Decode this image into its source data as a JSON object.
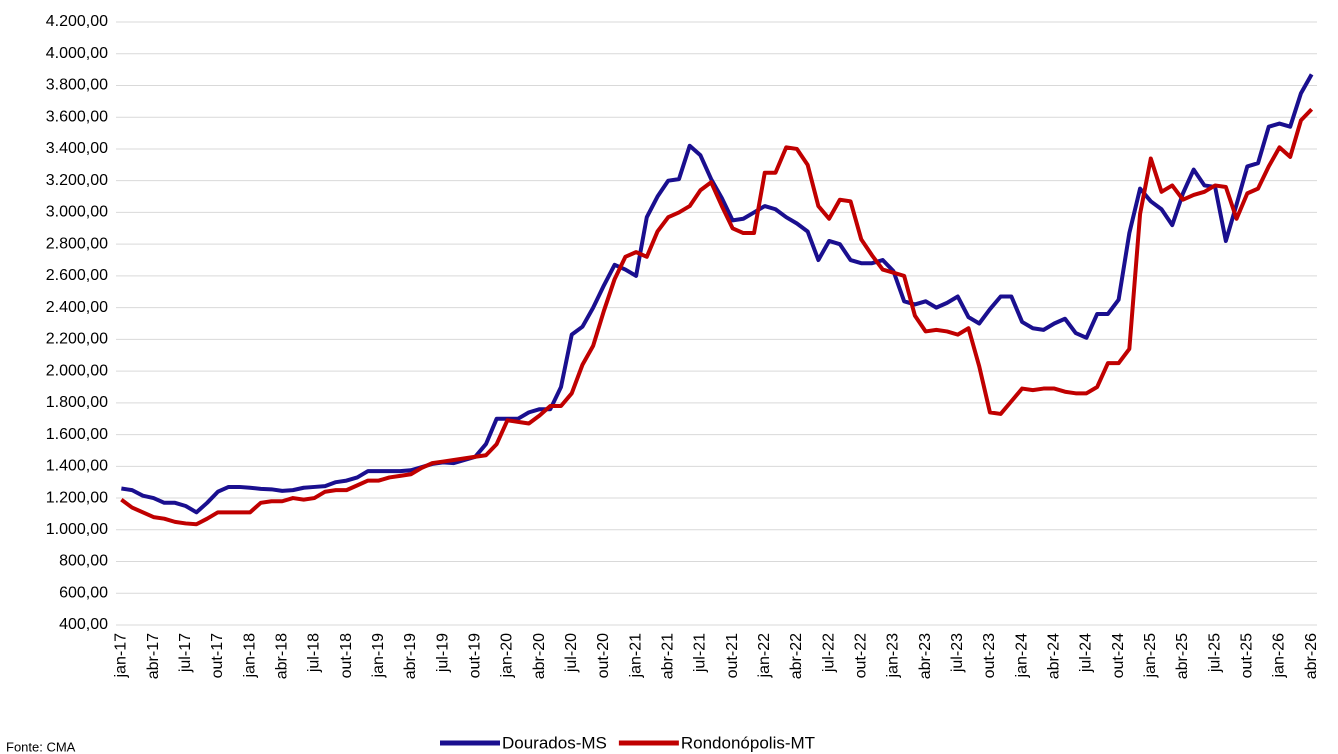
{
  "chart_data": {
    "type": "line",
    "categories": [
      "jan-17",
      null,
      null,
      "abr-17",
      null,
      null,
      "jul-17",
      null,
      null,
      "out-17",
      null,
      null,
      "jan-18",
      null,
      null,
      "abr-18",
      null,
      null,
      "jul-18",
      null,
      null,
      "out-18",
      null,
      null,
      "jan-19",
      null,
      null,
      "abr-19",
      null,
      null,
      "jul-19",
      null,
      null,
      "out-19",
      null,
      null,
      "jan-20",
      null,
      null,
      "abr-20",
      null,
      null,
      "jul-20",
      null,
      null,
      "out-20",
      null,
      null,
      "jan-21",
      null,
      null,
      "abr-21",
      null,
      null,
      "jul-21",
      null,
      null,
      "out-21",
      null,
      null,
      "jan-22",
      null,
      null,
      "abr-22",
      null,
      null,
      "jul-22",
      null,
      null,
      "out-22",
      null,
      null,
      "jan-23",
      null,
      null,
      "abr-23",
      null,
      null,
      "jul-23",
      null,
      null,
      "out-23",
      null,
      null,
      "jan-24",
      null,
      null,
      "abr-24",
      null,
      null,
      "jul-24",
      null,
      null,
      "out-24",
      null,
      null,
      "jan-25",
      null,
      null,
      "abr-25",
      null,
      null,
      "jul-25",
      null,
      null,
      "out-25",
      null,
      null,
      "jan-26",
      null,
      null,
      "abr-26"
    ],
    "series": [
      {
        "name": "Dourados-MS",
        "color": "#1a0f8f",
        "values": [
          1260,
          1250,
          1215,
          1200,
          1170,
          1170,
          1150,
          1110,
          1170,
          1240,
          1270,
          1270,
          1265,
          1258,
          1255,
          1245,
          1250,
          1265,
          1270,
          1275,
          1300,
          1310,
          1330,
          1370,
          1370,
          1370,
          1370,
          1375,
          1395,
          1415,
          1425,
          1420,
          1440,
          1460,
          1540,
          1700,
          1700,
          1700,
          1740,
          1760,
          1760,
          1900,
          2230,
          2280,
          2400,
          2540,
          2670,
          2640,
          2600,
          2970,
          3100,
          3200,
          3210,
          3420,
          3360,
          3210,
          3090,
          2950,
          2960,
          3000,
          3040,
          3020,
          2970,
          2930,
          2880,
          2700,
          2820,
          2800,
          2700,
          2680,
          2680,
          2700,
          2630,
          2440,
          2420,
          2440,
          2400,
          2430,
          2470,
          2340,
          2300,
          2390,
          2470,
          2470,
          2310,
          2270,
          2260,
          2300,
          2330,
          2240,
          2210,
          2360,
          2360,
          2450,
          2870,
          3150,
          3070,
          3020,
          2920,
          3120,
          3270,
          3170,
          3160,
          2820,
          3050,
          3290,
          3310,
          3540,
          3560,
          3540,
          3750,
          3870
        ]
      },
      {
        "name": "Rondonópolis-MT",
        "color": "#c00000",
        "values": [
          1190,
          1140,
          1110,
          1080,
          1070,
          1050,
          1040,
          1035,
          1070,
          1110,
          1110,
          1110,
          1110,
          1170,
          1180,
          1180,
          1200,
          1190,
          1200,
          1240,
          1250,
          1250,
          1280,
          1310,
          1310,
          1330,
          1340,
          1350,
          1390,
          1420,
          1430,
          1440,
          1450,
          1460,
          1470,
          1540,
          1690,
          1680,
          1670,
          1720,
          1780,
          1780,
          1860,
          2040,
          2160,
          2380,
          2580,
          2720,
          2750,
          2720,
          2880,
          2970,
          3000,
          3040,
          3140,
          3190,
          3040,
          2900,
          2870,
          2870,
          3250,
          3250,
          3410,
          3400,
          3300,
          3040,
          2960,
          3080,
          3070,
          2830,
          2730,
          2640,
          2620,
          2600,
          2350,
          2250,
          2260,
          2250,
          2230,
          2270,
          2030,
          1740,
          1730,
          1810,
          1890,
          1880,
          1890,
          1890,
          1870,
          1860,
          1860,
          1900,
          2050,
          2050,
          2140,
          2990,
          3340,
          3130,
          3170,
          3080,
          3110,
          3130,
          3170,
          3160,
          2960,
          3120,
          3150,
          3290,
          3410,
          3350,
          3580,
          3650
        ]
      }
    ],
    "ylim": [
      400,
      4200
    ],
    "yticks": [
      {
        "value": 400,
        "label": "400,00"
      },
      {
        "value": 600,
        "label": "600,00"
      },
      {
        "value": 800,
        "label": "800,00"
      },
      {
        "value": 1000,
        "label": "1.000,00"
      },
      {
        "value": 1200,
        "label": "1.200,00"
      },
      {
        "value": 1400,
        "label": "1.400,00"
      },
      {
        "value": 1600,
        "label": "1.600,00"
      },
      {
        "value": 1800,
        "label": "1.800,00"
      },
      {
        "value": 2000,
        "label": "2.000,00"
      },
      {
        "value": 2200,
        "label": "2.200,00"
      },
      {
        "value": 2400,
        "label": "2.400,00"
      },
      {
        "value": 2600,
        "label": "2.600,00"
      },
      {
        "value": 2800,
        "label": "2.800,00"
      },
      {
        "value": 3000,
        "label": "3.000,00"
      },
      {
        "value": 3200,
        "label": "3.200,00"
      },
      {
        "value": 3400,
        "label": "3.400,00"
      },
      {
        "value": 3600,
        "label": "3.600,00"
      },
      {
        "value": 3800,
        "label": "3.800,00"
      },
      {
        "value": 4000,
        "label": "4.000,00"
      },
      {
        "value": 4200,
        "label": "4.200,00"
      }
    ],
    "grid": true,
    "source": "Fonte: CMA"
  }
}
